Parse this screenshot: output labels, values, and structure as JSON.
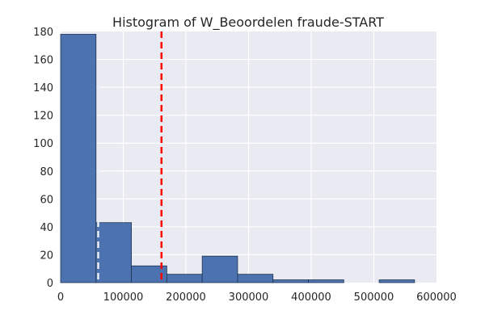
{
  "chart_data": {
    "type": "bar",
    "subtype": "histogram",
    "title": "Histogram of W_Beoordelen fraude-START",
    "xlabel": "",
    "ylabel": "",
    "xlim": [
      0,
      600000
    ],
    "ylim": [
      0,
      180
    ],
    "xticks": [
      0,
      100000,
      200000,
      300000,
      400000,
      500000,
      600000
    ],
    "xtick_labels": [
      "0",
      "100000",
      "200000",
      "300000",
      "400000",
      "500000",
      "600000"
    ],
    "yticks": [
      0,
      20,
      40,
      60,
      80,
      100,
      120,
      140,
      160,
      180
    ],
    "ytick_labels": [
      "0",
      "20",
      "40",
      "60",
      "80",
      "100",
      "120",
      "140",
      "160",
      "180"
    ],
    "bins": [
      {
        "x0": 0,
        "x1": 56500,
        "count": 178
      },
      {
        "x0": 56500,
        "x1": 113000,
        "count": 43
      },
      {
        "x0": 113000,
        "x1": 169500,
        "count": 12
      },
      {
        "x0": 169500,
        "x1": 226000,
        "count": 6
      },
      {
        "x0": 226000,
        "x1": 282500,
        "count": 19
      },
      {
        "x0": 282500,
        "x1": 339000,
        "count": 6
      },
      {
        "x0": 339000,
        "x1": 395500,
        "count": 2
      },
      {
        "x0": 395500,
        "x1": 452000,
        "count": 2
      },
      {
        "x0": 452000,
        "x1": 508500,
        "count": 0
      },
      {
        "x0": 508500,
        "x1": 565000,
        "count": 2
      }
    ],
    "reference_lines": [
      {
        "x": 60000,
        "color": "#e8ecf6",
        "style": "dashed"
      },
      {
        "x": 161000,
        "color": "#ff0000",
        "style": "dashed"
      }
    ],
    "grid": true,
    "colors": {
      "bar": "#4c72b0",
      "plot_background": "#eaeaf2",
      "grid": "#ffffff"
    }
  }
}
